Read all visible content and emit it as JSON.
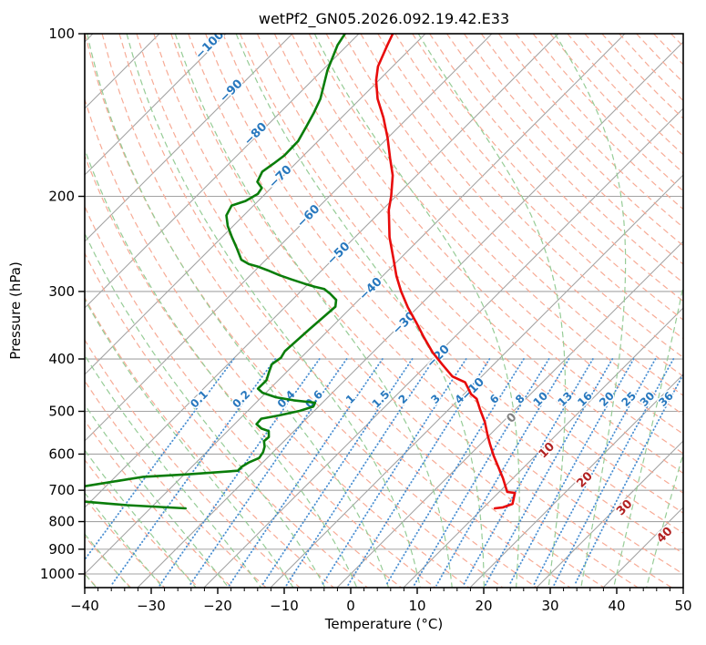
{
  "title": "wetPf2_GN05.2026.092.19.42.E33",
  "axes": {
    "xlabel": "Temperature (°C)",
    "ylabel": "Pressure (hPa)",
    "x_ticks": [
      -40,
      -30,
      -20,
      -10,
      0,
      10,
      20,
      30,
      40,
      50
    ],
    "x_minor_step": 2,
    "y_ticks": [
      100,
      200,
      300,
      400,
      500,
      600,
      700,
      800,
      900,
      1000
    ]
  },
  "chart_data": {
    "type": "skewt-logp-sounding",
    "title": "wetPf2_GN05.2026.092.19.42.E33",
    "xlabel": "Temperature (°C)",
    "ylabel": "Pressure (hPa)",
    "x_range_c": [
      -40,
      50
    ],
    "pressure_range_hpa": [
      100,
      1060
    ],
    "skew": "45deg isotherms",
    "isotherms": {
      "step_c": 10,
      "range_c": [
        -120,
        40
      ],
      "labels": [
        {
          "value": -100,
          "at_pressure": 106
        },
        {
          "value": -90,
          "at_pressure": 129
        },
        {
          "value": -80,
          "at_pressure": 155
        },
        {
          "value": -70,
          "at_pressure": 186
        },
        {
          "value": -60,
          "at_pressure": 220
        },
        {
          "value": -50,
          "at_pressure": 258
        },
        {
          "value": -40,
          "at_pressure": 300
        },
        {
          "value": -30,
          "at_pressure": 347
        },
        {
          "value": -20,
          "at_pressure": 400
        },
        {
          "value": -10,
          "at_pressure": 460
        },
        {
          "value": 0,
          "at_pressure": 520
        },
        {
          "value": 10,
          "at_pressure": 597
        },
        {
          "value": 20,
          "at_pressure": 677
        },
        {
          "value": 30,
          "at_pressure": 762
        },
        {
          "value": 40,
          "at_pressure": 856
        }
      ]
    },
    "dry_adiabats": {
      "theta_start_c": -40,
      "theta_end_c": 200,
      "theta_step_c": 5
    },
    "moist_adiabats": {
      "thetaw_start_c": -40,
      "thetaw_end_c": 45,
      "thetaw_step_c": 5
    },
    "mixing_ratio_lines": {
      "values_g_kg": [
        0.1,
        0.2,
        0.4,
        0.6,
        1,
        1.5,
        2,
        3,
        4,
        6,
        8,
        10,
        13,
        16,
        20,
        25,
        30,
        36
      ],
      "label_pressure": 480,
      "top_pressure": 400,
      "bottom_pressure": 1055
    },
    "series": [
      {
        "name": "temperature",
        "units": [
          "hPa",
          "degC"
        ],
        "points": [
          [
            100,
            -74.9
          ],
          [
            105,
            -74.0
          ],
          [
            115,
            -72.2
          ],
          [
            122,
            -70.4
          ],
          [
            132,
            -67.4
          ],
          [
            143,
            -63.7
          ],
          [
            156,
            -60.0
          ],
          [
            170,
            -56.6
          ],
          [
            183,
            -53.6
          ],
          [
            200,
            -50.7
          ],
          [
            212,
            -49.0
          ],
          [
            238,
            -44.8
          ],
          [
            262,
            -40.8
          ],
          [
            281,
            -37.9
          ],
          [
            300,
            -34.9
          ],
          [
            321,
            -31.5
          ],
          [
            344,
            -27.7
          ],
          [
            364,
            -24.7
          ],
          [
            389,
            -21.0
          ],
          [
            409,
            -17.8
          ],
          [
            431,
            -14.4
          ],
          [
            442,
            -11.6
          ],
          [
            465,
            -8.9
          ],
          [
            474,
            -7.4
          ],
          [
            497,
            -5.2
          ],
          [
            523,
            -2.7
          ],
          [
            552,
            -0.4
          ],
          [
            576,
            1.5
          ],
          [
            604,
            3.7
          ],
          [
            635,
            6.2
          ],
          [
            665,
            8.5
          ],
          [
            705,
            11.2
          ],
          [
            708,
            12.5
          ],
          [
            742,
            13.8
          ],
          [
            753,
            12.9
          ],
          [
            756,
            11.8
          ]
        ]
      },
      {
        "name": "dewpoint",
        "units": [
          "hPa",
          "degC"
        ],
        "points": [
          [
            100,
            -82.1
          ],
          [
            105,
            -81.5
          ],
          [
            117,
            -79.2
          ],
          [
            132,
            -76.0
          ],
          [
            140,
            -74.9
          ],
          [
            148,
            -74.0
          ],
          [
            158,
            -73.0
          ],
          [
            168,
            -72.9
          ],
          [
            174,
            -73.3
          ],
          [
            180,
            -73.8
          ],
          [
            188,
            -73.0
          ],
          [
            193,
            -71.4
          ],
          [
            198,
            -71.1
          ],
          [
            204,
            -71.9
          ],
          [
            208,
            -73.3
          ],
          [
            217,
            -72.6
          ],
          [
            227,
            -70.8
          ],
          [
            238,
            -68.5
          ],
          [
            250,
            -66.0
          ],
          [
            262,
            -63.7
          ],
          [
            267,
            -61.9
          ],
          [
            270,
            -60.1
          ],
          [
            274,
            -58.2
          ],
          [
            280,
            -55.6
          ],
          [
            285,
            -53.2
          ],
          [
            290,
            -50.7
          ],
          [
            294,
            -48.6
          ],
          [
            297,
            -46.8
          ],
          [
            303,
            -45.2
          ],
          [
            311,
            -43.4
          ],
          [
            320,
            -42.5
          ],
          [
            352,
            -43.0
          ],
          [
            387,
            -43.4
          ],
          [
            398,
            -43.0
          ],
          [
            409,
            -43.4
          ],
          [
            422,
            -42.7
          ],
          [
            438,
            -41.8
          ],
          [
            454,
            -41.8
          ],
          [
            462,
            -40.5
          ],
          [
            471,
            -37.8
          ],
          [
            477,
            -34.7
          ],
          [
            482,
            -31.1
          ],
          [
            490,
            -30.8
          ],
          [
            499,
            -32.2
          ],
          [
            509,
            -34.7
          ],
          [
            516,
            -36.8
          ],
          [
            528,
            -36.7
          ],
          [
            538,
            -35.3
          ],
          [
            544,
            -33.8
          ],
          [
            558,
            -32.9
          ],
          [
            568,
            -33.0
          ],
          [
            581,
            -32.1
          ],
          [
            595,
            -31.5
          ],
          [
            610,
            -31.2
          ],
          [
            622,
            -32.1
          ],
          [
            633,
            -32.5
          ],
          [
            644,
            -32.5
          ],
          [
            654,
            -39.3
          ],
          [
            661,
            -45.8
          ],
          [
            688,
            -53.2
          ],
          [
            712,
            -59.2
          ],
          [
            735,
            -50.8
          ],
          [
            746,
            -44.0
          ],
          [
            756,
            -34.7
          ]
        ]
      }
    ],
    "colors": {
      "temperature": "#e80b0b",
      "dewpoint": "#0a7d0a",
      "isotherm": "#a3a3a3",
      "grid": "#a3a3a3",
      "dry_adiabat": "#f7ab96",
      "moist_adiabat": "#96cc96",
      "mixing_ratio": "#4a8fd2",
      "label_negative": "#2878be",
      "label_zero": "#7f7f7f",
      "label_positive": "#b22222",
      "spine": "#000000"
    }
  }
}
